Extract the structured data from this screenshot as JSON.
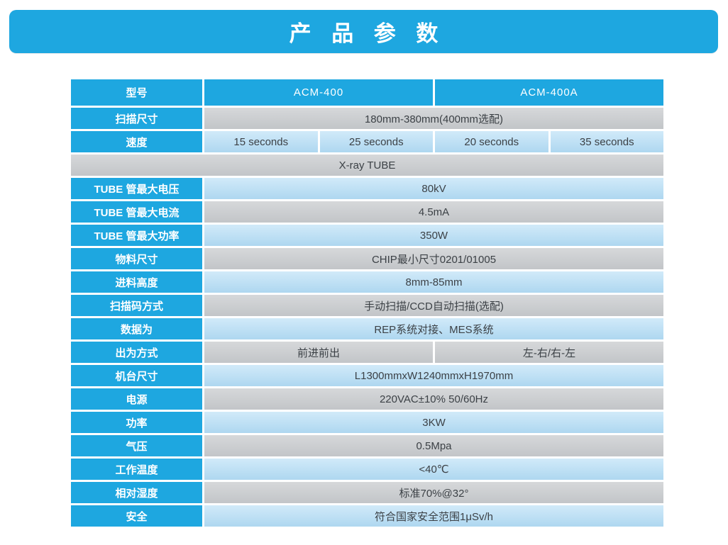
{
  "banner": {
    "title": "产 品 参 数"
  },
  "colors": {
    "accent_blue": "#1ea7e0",
    "row_gray": "#c8cbce",
    "row_light_blue": "#b9dcf2",
    "value_text": "#3c4146",
    "label_text": "#ffffff"
  },
  "table": {
    "rows": [
      {
        "label": "型号",
        "style": "blue",
        "first": true,
        "cells": [
          {
            "text": "ACM-400",
            "span": 2
          },
          {
            "text": "ACM-400A",
            "span": 2
          }
        ]
      },
      {
        "label": "扫描尺寸",
        "style": "gray",
        "cells": [
          {
            "text": "180mm-380mm(400mm选配)",
            "span": 4
          }
        ]
      },
      {
        "label": "速度",
        "style": "lblue",
        "cells": [
          {
            "text": "15 seconds",
            "span": 1
          },
          {
            "text": "25 seconds",
            "span": 1
          },
          {
            "text": "20 seconds",
            "span": 1
          },
          {
            "text": "35 seconds",
            "span": 1
          }
        ]
      },
      {
        "section": true,
        "style": "gray",
        "cells": [
          {
            "text": "X-ray TUBE",
            "span": 4
          }
        ]
      },
      {
        "label": "TUBE 管最大电压",
        "style": "lblue",
        "cells": [
          {
            "text": "80kV",
            "span": 4
          }
        ]
      },
      {
        "label": "TUBE 管最大电流",
        "style": "gray",
        "cells": [
          {
            "text": "4.5mA",
            "span": 4
          }
        ]
      },
      {
        "label": "TUBE 管最大功率",
        "style": "lblue",
        "cells": [
          {
            "text": "350W",
            "span": 4
          }
        ]
      },
      {
        "label": "物料尺寸",
        "style": "gray",
        "cells": [
          {
            "text": "CHIP最小尺寸0201/01005",
            "span": 4
          }
        ]
      },
      {
        "label": "进料高度",
        "style": "lblue",
        "cells": [
          {
            "text": "8mm-85mm",
            "span": 4
          }
        ]
      },
      {
        "label": "扫描码方式",
        "style": "gray",
        "cells": [
          {
            "text": "手动扫描/CCD自动扫描(选配)",
            "span": 4
          }
        ]
      },
      {
        "label": "数据为",
        "style": "lblue",
        "cells": [
          {
            "text": "REP系统对接、MES系统",
            "span": 4
          }
        ]
      },
      {
        "label": "出为方式",
        "style": "gray",
        "cells": [
          {
            "text": "前进前出",
            "span": 2
          },
          {
            "text": "左-右/右-左",
            "span": 2
          }
        ]
      },
      {
        "label": "机台尺寸",
        "style": "lblue",
        "cells": [
          {
            "text": "L1300mmxW1240mmxH1970mm",
            "span": 4
          }
        ]
      },
      {
        "label": "电源",
        "style": "gray",
        "cells": [
          {
            "text": "220VAC±10% 50/60Hz",
            "span": 4
          }
        ]
      },
      {
        "label": "功率",
        "style": "lblue",
        "cells": [
          {
            "text": "3KW",
            "span": 4
          }
        ]
      },
      {
        "label": "气压",
        "style": "gray",
        "cells": [
          {
            "text": "0.5Mpa",
            "span": 4
          }
        ]
      },
      {
        "label": "工作温度",
        "style": "lblue",
        "cells": [
          {
            "text": "<40℃",
            "span": 4
          }
        ]
      },
      {
        "label": "相对湿度",
        "style": "gray",
        "cells": [
          {
            "text": "标准70%@32°",
            "span": 4
          }
        ]
      },
      {
        "label": "安全",
        "style": "lblue",
        "cells": [
          {
            "text": "符合国家安全范围1μSv/h",
            "span": 4
          }
        ]
      }
    ]
  }
}
